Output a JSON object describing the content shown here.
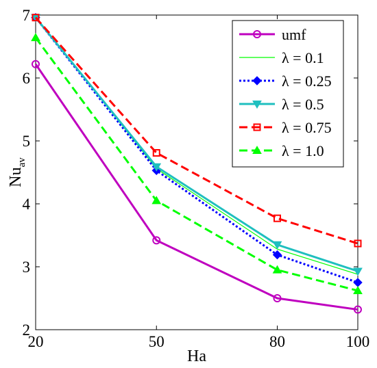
{
  "chart_data": {
    "type": "line",
    "xlabel": "Ha",
    "ylabel_main": "Nu",
    "ylabel_sub": "av",
    "x": [
      20,
      50,
      80,
      100
    ],
    "xlim": [
      20,
      100
    ],
    "ylim": [
      2,
      7
    ],
    "xticks": [
      "20",
      "50",
      "80",
      "100"
    ],
    "yticks": [
      "2",
      "3",
      "4",
      "5",
      "6",
      "7"
    ],
    "grid": false,
    "legend_position": "top-right",
    "series": [
      {
        "name": "umf",
        "values": [
          6.22,
          3.42,
          2.5,
          2.32
        ],
        "color": "#bf00bf",
        "dash": "solid",
        "marker": "circle"
      },
      {
        "name": "λ = 0.1",
        "values": [
          6.97,
          4.56,
          3.28,
          2.88
        ],
        "color": "#00ff00",
        "dash": "solid",
        "marker": "none"
      },
      {
        "name": "λ = 0.25",
        "values": [
          6.96,
          4.53,
          3.19,
          2.75
        ],
        "color": "#0000ff",
        "dash": "dotted",
        "marker": "diamond"
      },
      {
        "name": "λ = 0.5",
        "values": [
          6.96,
          4.59,
          3.35,
          2.93
        ],
        "color": "#1fbfbf",
        "dash": "solid",
        "marker": "triangle-down"
      },
      {
        "name": "λ = 0.75",
        "values": [
          6.96,
          4.81,
          3.77,
          3.37
        ],
        "color": "#ff0000",
        "dash": "dashed",
        "marker": "square"
      },
      {
        "name": "λ = 1.0",
        "values": [
          6.64,
          4.05,
          2.95,
          2.62
        ],
        "color": "#00ff00",
        "dash": "dashed",
        "marker": "triangle-up"
      }
    ]
  }
}
